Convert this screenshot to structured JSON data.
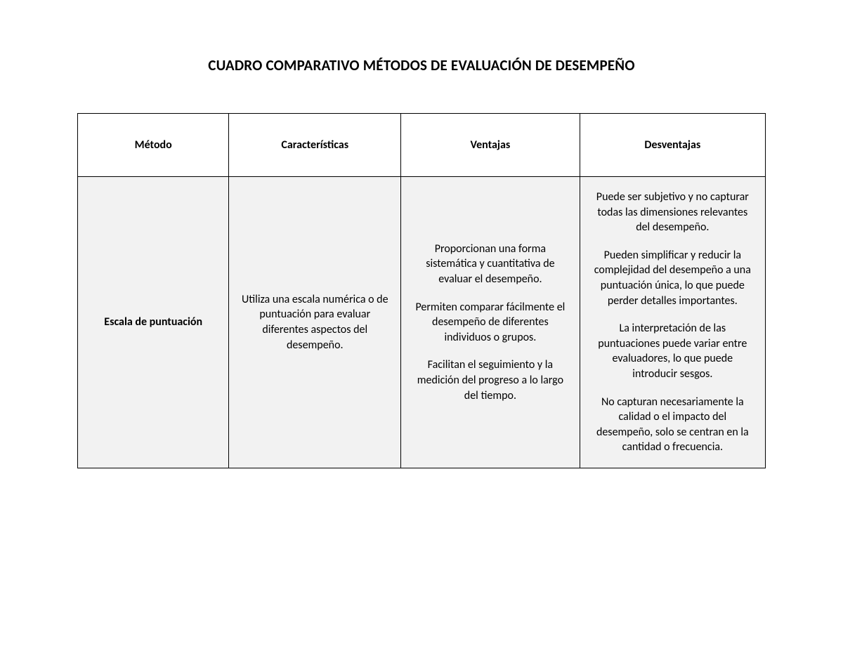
{
  "title": "CUADRO COMPARATIVO MÉTODOS DE EVALUACIÓN DE DESEMPEÑO",
  "table": {
    "type": "table",
    "background_color": "#ffffff",
    "row_background_color": "#f2f2f2",
    "border_color": "#000000",
    "header_fontsize": 16,
    "header_fontweight": "600",
    "body_fontsize": 16,
    "columns": [
      {
        "key": "metodo",
        "label": "Método",
        "width_pct": 22,
        "align": "center"
      },
      {
        "key": "caracteristicas",
        "label": "Características",
        "width_pct": 25,
        "align": "center"
      },
      {
        "key": "ventajas",
        "label": "Ventajas",
        "width_pct": 26,
        "align": "center"
      },
      {
        "key": "desventajas",
        "label": "Desventajas",
        "width_pct": 27,
        "align": "center"
      }
    ],
    "rows": [
      {
        "metodo": "Escala de puntuación",
        "caracteristicas": [
          "Utiliza una escala numérica o de puntuación para evaluar diferentes aspectos del desempeño."
        ],
        "ventajas": [
          "Proporcionan una forma sistemática y cuantitativa de evaluar el desempeño.",
          "Permiten comparar fácilmente el desempeño de diferentes individuos o grupos.",
          "Facilitan el seguimiento y la medición del progreso a lo largo del tiempo."
        ],
        "desventajas": [
          "Puede ser subjetivo y no capturar todas las dimensiones relevantes del desempeño.",
          "Pueden simplificar y reducir la complejidad del desempeño a una puntuación única, lo que puede perder detalles importantes.",
          "La interpretación de las puntuaciones puede variar entre evaluadores, lo que puede introducir sesgos.",
          "No capturan necesariamente la calidad o el impacto del desempeño, solo se centran en la cantidad o frecuencia."
        ]
      }
    ]
  }
}
